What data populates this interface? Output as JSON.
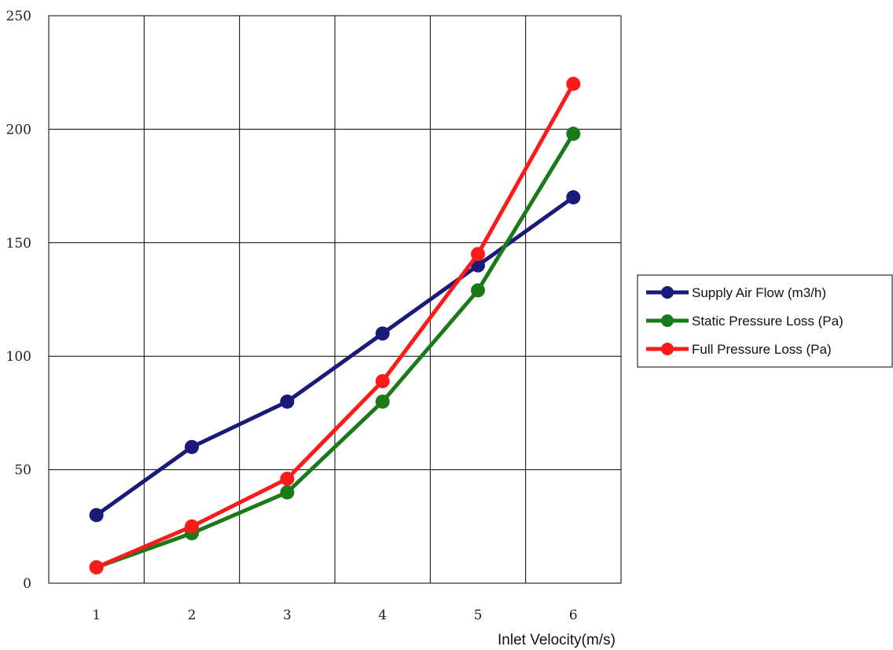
{
  "chart_data": {
    "type": "line",
    "x": [
      1,
      2,
      3,
      4,
      5,
      6
    ],
    "xticks": [
      "1",
      "2",
      "3",
      "4",
      "5",
      "6"
    ],
    "yticks": [
      "0",
      "50",
      "100",
      "150",
      "200",
      "250"
    ],
    "xlim": [
      0.5,
      6.5
    ],
    "ylim": [
      0,
      250
    ],
    "xlabel": "Inlet  Velocity(m/s)",
    "ylabel": "",
    "grid": true,
    "legend_position": "right",
    "series": [
      {
        "name": "Supply Air Flow (m3/h)",
        "color": "#1a1a7a",
        "values": [
          30,
          60,
          80,
          110,
          140,
          170
        ]
      },
      {
        "name": "Static Pressure Loss (Pa)",
        "color": "#1a7a1a",
        "values": [
          7,
          22,
          40,
          80,
          129,
          198
        ]
      },
      {
        "name": "Full Pressure Loss (Pa)",
        "color": "#ff1a1a",
        "values": [
          7,
          25,
          46,
          89,
          145,
          220
        ]
      }
    ]
  }
}
